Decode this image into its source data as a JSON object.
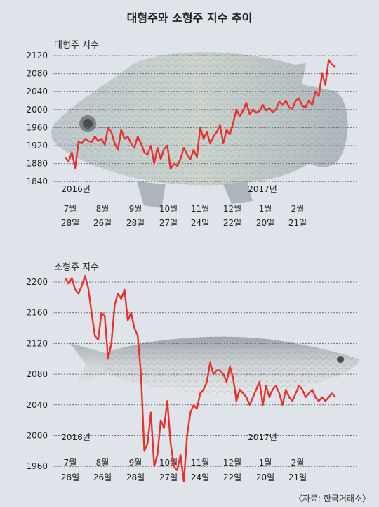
{
  "title": "대형주와 소형주 지수 추이",
  "source": "〈자료: 한국거래소〉",
  "colors": {
    "line": "#e8302e",
    "background": "#dfe4ea",
    "grid": "#6b6f75"
  },
  "chart_data": [
    {
      "type": "line",
      "title": "대형주 지수",
      "y_ticks": [
        "2120",
        "2080",
        "2040",
        "2000",
        "1960",
        "1920",
        "1880",
        "1840"
      ],
      "ylim": [
        1840,
        2120
      ],
      "year_labels": [
        "2016년",
        "2017년"
      ],
      "x_ticks": [
        {
          "month": "7월",
          "day": "28일"
        },
        {
          "month": "8월",
          "day": "26일"
        },
        {
          "month": "9월",
          "day": "28일"
        },
        {
          "month": "10월",
          "day": "27일"
        },
        {
          "month": "11월",
          "day": "24일"
        },
        {
          "month": "12월",
          "day": "22일"
        },
        {
          "month": "1월",
          "day": "20일"
        },
        {
          "month": "2월",
          "day": "21일"
        }
      ],
      "x_range": [
        0,
        165
      ],
      "grid": true,
      "series": [
        {
          "x": [
            0,
            2,
            4,
            6,
            8,
            10,
            12,
            14,
            16,
            18,
            20,
            22,
            24,
            26,
            28,
            30,
            32,
            34,
            36,
            38,
            40,
            42,
            44,
            46,
            48,
            50,
            52,
            54,
            56,
            58,
            60,
            62,
            64,
            66,
            68,
            70,
            72,
            74,
            76,
            78,
            80,
            82,
            84,
            86,
            88,
            90,
            92,
            94,
            96,
            98,
            100,
            102,
            104,
            106,
            108,
            110,
            112,
            114,
            116,
            118,
            120,
            122,
            124,
            126,
            128,
            130,
            132,
            134,
            136,
            138,
            140,
            142,
            144,
            146,
            148,
            150,
            152,
            154,
            156,
            158,
            160,
            162,
            164
          ],
          "values": [
            1894,
            1884,
            1905,
            1870,
            1928,
            1925,
            1935,
            1930,
            1928,
            1940,
            1930,
            1935,
            1922,
            1960,
            1950,
            1925,
            1910,
            1955,
            1935,
            1940,
            1925,
            1915,
            1940,
            1925,
            1905,
            1900,
            1920,
            1880,
            1915,
            1890,
            1912,
            1920,
            1868,
            1880,
            1875,
            1890,
            1915,
            1900,
            1890,
            1910,
            1895,
            1960,
            1935,
            1950,
            1925,
            1940,
            1950,
            1965,
            1925,
            1955,
            1945,
            1970,
            2000,
            1985,
            1998,
            2015,
            1990,
            2000,
            1993,
            1997,
            2010,
            1998,
            2003,
            1994,
            2000,
            2018,
            2010,
            2020,
            2005,
            2002,
            2020,
            2025,
            2008,
            2005,
            2020,
            2010,
            2040,
            2030,
            2080,
            2055,
            2110,
            2100,
            2095
          ]
        }
      ]
    },
    {
      "type": "line",
      "title": "소형주 지수",
      "y_ticks": [
        "2200",
        "2160",
        "2120",
        "2080",
        "2040",
        "2000",
        "1960"
      ],
      "ylim": [
        1935,
        2210
      ],
      "year_labels": [
        "2016년",
        "2017년"
      ],
      "x_ticks": [
        {
          "month": "7월",
          "day": "28일"
        },
        {
          "month": "8월",
          "day": "26일"
        },
        {
          "month": "9월",
          "day": "28일"
        },
        {
          "month": "10월",
          "day": "27일"
        },
        {
          "month": "11월",
          "day": "24일"
        },
        {
          "month": "12월",
          "day": "22일"
        },
        {
          "month": "1월",
          "day": "20일"
        },
        {
          "month": "2월",
          "day": "21일"
        }
      ],
      "x_range": [
        0,
        165
      ],
      "grid": true,
      "series": [
        {
          "x": [
            0,
            2,
            4,
            6,
            8,
            10,
            12,
            14,
            16,
            18,
            20,
            22,
            24,
            26,
            28,
            30,
            32,
            34,
            36,
            38,
            40,
            42,
            44,
            46,
            48,
            50,
            52,
            54,
            56,
            58,
            60,
            62,
            64,
            66,
            68,
            70,
            72,
            74,
            76,
            78,
            80,
            82,
            84,
            86,
            88,
            90,
            92,
            94,
            96,
            98,
            100,
            102,
            104,
            106,
            108,
            110,
            112,
            114,
            116,
            118,
            120,
            122,
            124,
            126,
            128,
            130,
            132,
            134,
            136,
            138,
            140,
            142,
            144,
            146,
            148,
            150,
            152,
            154,
            156,
            158,
            160,
            162,
            164
          ],
          "values": [
            2205,
            2198,
            2205,
            2190,
            2185,
            2195,
            2208,
            2192,
            2160,
            2130,
            2125,
            2160,
            2155,
            2100,
            2120,
            2170,
            2185,
            2178,
            2190,
            2150,
            2160,
            2140,
            2130,
            2080,
            1980,
            1990,
            2030,
            1960,
            1975,
            2020,
            2010,
            2045,
            1990,
            1960,
            1955,
            1975,
            1940,
            2000,
            2030,
            2040,
            2035,
            2055,
            2060,
            2070,
            2095,
            2080,
            2085,
            2085,
            2080,
            2070,
            2090,
            2075,
            2045,
            2060,
            2055,
            2050,
            2040,
            2050,
            2060,
            2070,
            2040,
            2065,
            2050,
            2060,
            2065,
            2055,
            2040,
            2060,
            2050,
            2045,
            2055,
            2065,
            2060,
            2050,
            2055,
            2060,
            2050,
            2045,
            2050,
            2045,
            2050,
            2055,
            2050
          ]
        }
      ]
    }
  ]
}
